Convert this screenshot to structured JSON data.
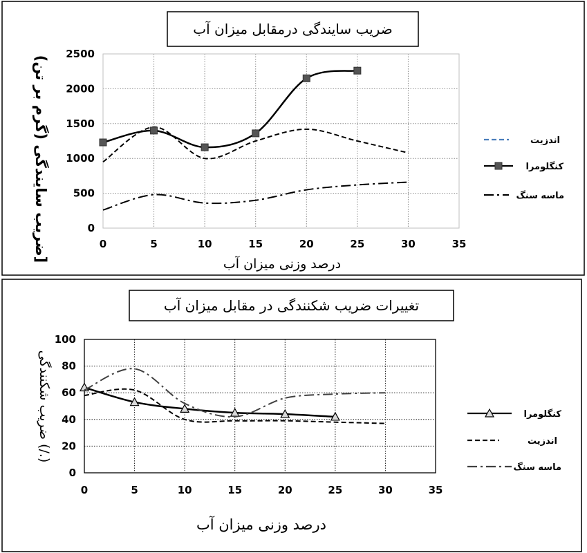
{
  "chart_data": [
    {
      "type": "line",
      "title": "ضریب سایندگی درمقابل میزان آب",
      "xlabel": "درصد وزنی میزان آب",
      "ylabel": "ضریب سایندگی (گرم بر تن)]",
      "xlim": [
        0,
        35
      ],
      "ylim": [
        0,
        2500
      ],
      "xticks": [
        0,
        5,
        10,
        15,
        20,
        25,
        30,
        35
      ],
      "yticks": [
        0,
        500,
        1000,
        1500,
        2000,
        2500
      ],
      "grid": true,
      "legend_position": "right",
      "series": [
        {
          "name": "اندزیت",
          "style": "dashed",
          "color": "#000000",
          "legend_color": "#4a7ebb",
          "marker": "none",
          "x": [
            0,
            5,
            10,
            15,
            20,
            25,
            30
          ],
          "y": [
            950,
            1450,
            1000,
            1250,
            1420,
            1250,
            1080
          ]
        },
        {
          "name": "کنگلومرا",
          "style": "solid",
          "color": "#000000",
          "marker": "square",
          "x": [
            0,
            5,
            10,
            15,
            20,
            25
          ],
          "y": [
            1230,
            1400,
            1160,
            1360,
            2150,
            2260
          ]
        },
        {
          "name": "ماسه سنگ",
          "style": "dashdot",
          "color": "#000000",
          "marker": "none",
          "x": [
            0,
            5,
            10,
            15,
            20,
            25,
            30
          ],
          "y": [
            260,
            480,
            360,
            400,
            550,
            620,
            660
          ]
        }
      ]
    },
    {
      "type": "line",
      "title": "تغییرات ضریب شکنندگی در مقابل میزان آب",
      "xlabel": "درصد وزنی میزان آب",
      "ylabel": "ضریب شکنندگی (/.)",
      "xlim": [
        0,
        35
      ],
      "ylim": [
        0,
        100
      ],
      "xticks": [
        0,
        5,
        10,
        15,
        20,
        25,
        30,
        35
      ],
      "yticks": [
        0,
        20,
        40,
        60,
        80,
        100
      ],
      "grid": true,
      "legend_position": "right",
      "series": [
        {
          "name": "کنگلومرا",
          "style": "solid",
          "color": "#000000",
          "marker": "triangle",
          "x": [
            0,
            5,
            10,
            15,
            20,
            25
          ],
          "y": [
            64,
            53,
            48,
            45,
            44,
            42
          ]
        },
        {
          "name": "اندزیت",
          "style": "dashed",
          "color": "#000000",
          "marker": "none",
          "x": [
            0,
            5,
            10,
            15,
            20,
            25,
            30
          ],
          "y": [
            58,
            62,
            40,
            39,
            39,
            38,
            37
          ]
        },
        {
          "name": "ماسه سنگ",
          "style": "dashdot",
          "color": "#404040",
          "marker": "none",
          "x": [
            0,
            5,
            10,
            15,
            20,
            25,
            30
          ],
          "y": [
            62,
            78,
            52,
            42,
            56,
            59,
            60
          ]
        }
      ]
    }
  ]
}
